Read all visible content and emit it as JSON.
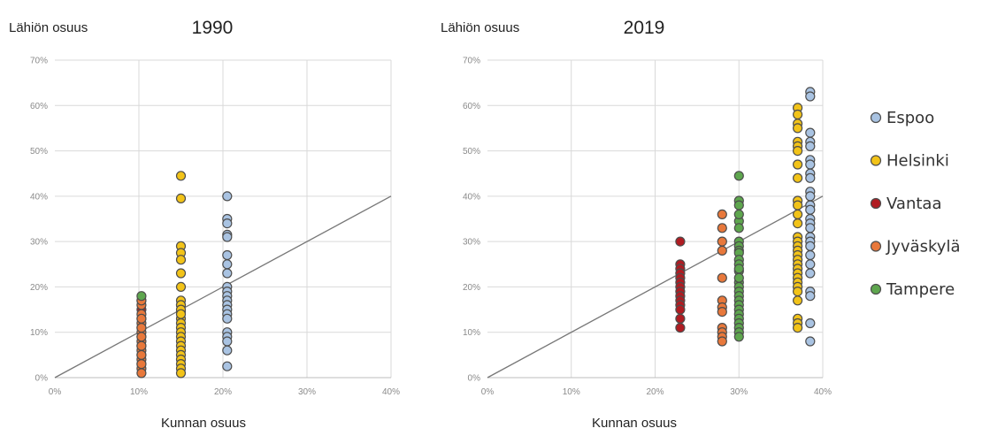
{
  "colors": {
    "Espoo": "#a9c3e2",
    "Helsinki": "#f2c318",
    "Vantaa": "#b01c22",
    "Jyväskylä": "#e8783b",
    "Tampere": "#5ea64e",
    "marker_edge": "#4d4d4d",
    "reference_line": "#777777"
  },
  "legend": [
    "Espoo",
    "Helsinki",
    "Vantaa",
    "Jyväskylä",
    "Tampere"
  ],
  "chart_data": [
    {
      "type": "scatter",
      "title": "1990",
      "ylabel": "Lähiön osuus",
      "xlabel": "Kunnan osuus",
      "xlim": [
        0,
        40
      ],
      "ylim": [
        0,
        70
      ],
      "xticks": [
        "0%",
        "10%",
        "20%",
        "30%",
        "40%"
      ],
      "yticks": [
        "0%",
        "10%",
        "20%",
        "30%",
        "40%",
        "50%",
        "60%",
        "70%"
      ],
      "grid": true,
      "reference_line": [
        [
          0,
          0
        ],
        [
          40,
          40
        ]
      ],
      "series": [
        {
          "name": "Tampere",
          "x": [
            10.3
          ],
          "y": [
            18
          ]
        },
        {
          "name": "Vantaa",
          "x": [
            10.3,
            10.3,
            10.3,
            10.3,
            10.3,
            10.3,
            10.3,
            10.3
          ],
          "y": [
            17,
            15,
            13,
            11,
            9,
            7,
            5,
            3
          ]
        },
        {
          "name": "Jyväskylä",
          "x": [
            10.3,
            10.3,
            10.3,
            10.3,
            10.3,
            10.3,
            10.3,
            10.3,
            10.3,
            10.3,
            10.3,
            10.3,
            10.3,
            10.3,
            10.3,
            10.3
          ],
          "y": [
            16,
            14,
            12,
            10,
            8,
            6,
            4,
            2,
            17,
            13,
            9,
            5,
            3,
            1,
            11,
            7
          ]
        },
        {
          "name": "Helsinki",
          "x": [
            15,
            15,
            15,
            15,
            15,
            15,
            15,
            15,
            15,
            15,
            15,
            15,
            15,
            15,
            15,
            15,
            15,
            15,
            15,
            15,
            15,
            15,
            15,
            15,
            15,
            15
          ],
          "y": [
            44.5,
            39.5,
            29,
            27.5,
            26,
            23,
            20,
            16,
            14.5,
            13,
            12,
            11,
            10,
            9,
            8,
            7,
            6,
            5,
            4,
            3,
            2,
            1,
            17,
            16,
            15,
            14
          ]
        },
        {
          "name": "Espoo",
          "x": [
            20.5,
            20.5,
            20.5,
            20.5,
            20.5,
            20.5,
            20.5,
            20.5,
            20.5,
            20.5,
            20.5,
            20.5,
            20.5,
            20.5,
            20.5,
            20.5,
            20.5,
            20.5,
            20.5,
            20.5,
            20.5
          ],
          "y": [
            40,
            35,
            34,
            31.5,
            31,
            27,
            25,
            23,
            20,
            19,
            18,
            17,
            16,
            15,
            14,
            13,
            10,
            9,
            8,
            6,
            2.5
          ]
        }
      ]
    },
    {
      "type": "scatter",
      "title": "2019",
      "ylabel": "Lähiön osuus",
      "xlabel": "Kunnan osuus",
      "xlim": [
        0,
        40
      ],
      "ylim": [
        0,
        70
      ],
      "xticks": [
        "0%",
        "10%",
        "20%",
        "30%",
        "40%"
      ],
      "yticks": [
        "0%",
        "10%",
        "20%",
        "30%",
        "40%",
        "50%",
        "60%",
        "70%"
      ],
      "grid": true,
      "reference_line": [
        [
          0,
          0
        ],
        [
          40,
          40
        ]
      ],
      "series": [
        {
          "name": "Vantaa",
          "x": [
            23,
            23,
            23,
            23,
            23,
            23,
            23,
            23,
            23,
            23,
            23,
            23,
            23,
            23
          ],
          "y": [
            30,
            25,
            24,
            23,
            22,
            21,
            20,
            19,
            18,
            17,
            16,
            15,
            13,
            11
          ]
        },
        {
          "name": "Jyväskylä",
          "x": [
            28,
            28,
            28,
            28,
            28,
            28,
            28,
            28,
            28,
            28,
            28,
            28
          ],
          "y": [
            36,
            33,
            30,
            28,
            22,
            17,
            15.5,
            14.5,
            11,
            10,
            9,
            8
          ]
        },
        {
          "name": "Tampere",
          "x": [
            30,
            30,
            30,
            30,
            30,
            30,
            30,
            30,
            30,
            30,
            30,
            30,
            30,
            30,
            30,
            30,
            30,
            30,
            30,
            30,
            30,
            30,
            30,
            30,
            30,
            30,
            30,
            30
          ],
          "y": [
            44.5,
            39,
            38,
            34.5,
            30,
            29,
            28,
            27.5,
            26,
            25,
            23.5,
            21,
            20,
            19,
            18,
            17,
            16,
            15,
            14,
            13,
            12,
            11,
            10,
            9,
            22,
            24,
            36,
            33
          ]
        },
        {
          "name": "Helsinki",
          "x": [
            37,
            37,
            37,
            37,
            37,
            37,
            37,
            37,
            37,
            37,
            37,
            37,
            37,
            37,
            37,
            37,
            37,
            37,
            37,
            37,
            37,
            37,
            37,
            37,
            37,
            37,
            37,
            37,
            37,
            37
          ],
          "y": [
            59.5,
            58,
            56,
            55,
            52,
            51,
            50,
            47,
            44,
            39,
            38,
            36,
            34,
            31,
            30,
            29,
            28,
            27,
            26,
            25,
            24,
            23,
            22,
            21,
            20,
            19,
            17,
            13,
            12,
            11
          ]
        },
        {
          "name": "Espoo",
          "x": [
            38.5,
            38.5,
            38.5,
            38.5,
            38.5,
            38.5,
            38.5,
            38.5,
            38.5,
            38.5,
            38.5,
            38.5,
            38.5,
            38.5,
            38.5,
            38.5,
            38.5,
            38.5,
            38.5,
            38.5,
            38.5,
            38.5,
            38.5,
            38.5,
            38.5,
            38.5
          ],
          "y": [
            63,
            62,
            54,
            52,
            51,
            48,
            47,
            45,
            44,
            41,
            40,
            38,
            37,
            35,
            34,
            33,
            31,
            30,
            29,
            27,
            25,
            23,
            19,
            18,
            12,
            8
          ]
        }
      ]
    }
  ]
}
